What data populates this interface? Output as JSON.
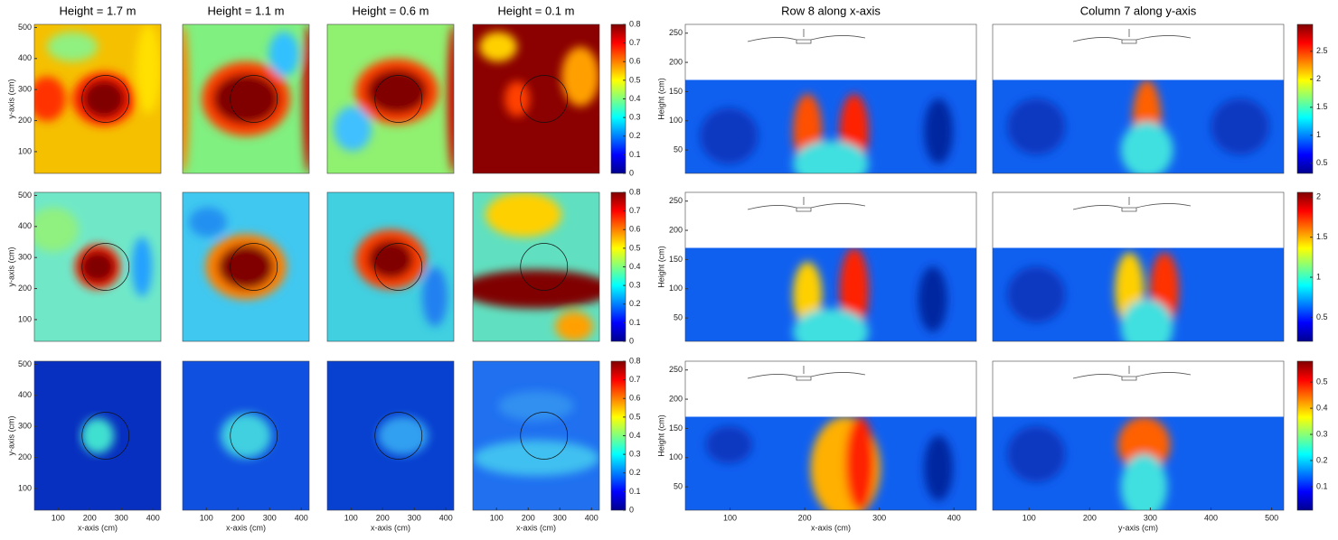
{
  "chart_data": [
    {
      "type": "contour",
      "titles": [
        "Height = 1.7 m",
        "Height = 1.1 m",
        "Height = 0.6 m",
        "Height = 0.1 m"
      ],
      "xlabel": "x-axis (cm)",
      "ylabel": "y-axis (cm)",
      "xlim": [
        25,
        425
      ],
      "ylim": [
        30,
        510
      ],
      "xticks": [
        100,
        200,
        300,
        400
      ],
      "yticks": [
        100,
        200,
        300,
        400,
        500
      ],
      "clim": [
        0,
        0.8
      ],
      "cticks": [
        0,
        0.1,
        0.2,
        0.3,
        0.4,
        0.5,
        0.6,
        0.7,
        0.8
      ]
    },
    {
      "type": "contour",
      "titles": [
        "Row 8 along x-axis",
        "Column 7 along y-axis"
      ],
      "xlabels": [
        "x-axis (cm)",
        "y-axis (cm)"
      ],
      "ylabel": "Height (cm)",
      "xlims": [
        [
          40,
          430
        ],
        [
          40,
          520
        ]
      ],
      "ylim": [
        10,
        265
      ],
      "xticks": [
        [
          100,
          200,
          300,
          400
        ],
        [
          100,
          200,
          300,
          400,
          500
        ]
      ],
      "yticks": [
        50,
        100,
        150,
        200,
        250
      ],
      "colorbars": [
        {
          "clim": [
            0.32,
            2.98
          ],
          "cticks": [
            0.5,
            1,
            1.5,
            2,
            2.5
          ]
        },
        {
          "clim": [
            0.2,
            2.06
          ],
          "cticks": [
            0.5,
            1,
            1.5,
            2
          ]
        },
        {
          "clim": [
            0.01,
            0.58
          ],
          "cticks": [
            0.1,
            0.2,
            0.3,
            0.4,
            0.5
          ]
        }
      ]
    }
  ]
}
